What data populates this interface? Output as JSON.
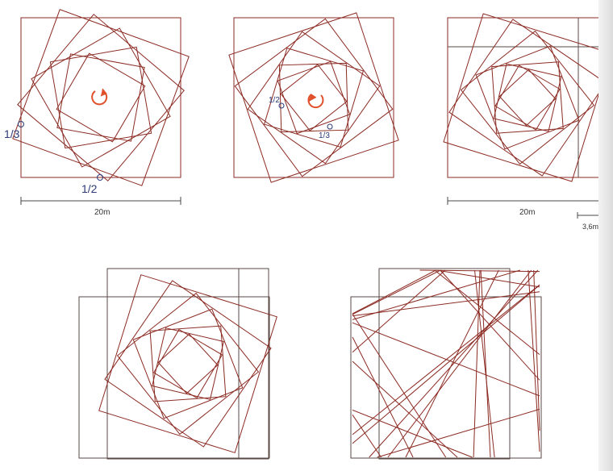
{
  "colors": {
    "construction": "#8b2a22",
    "square_outline": "#5a4a46",
    "dimension": "#4a4a4a",
    "annotation": "#2b3a78",
    "rotation_arrow": "#e0502a",
    "background": "#ffffff"
  },
  "panels": [
    {
      "id": "panel-1",
      "labels": {
        "third": "1/3",
        "half": "1/2"
      },
      "dimension": "20m",
      "rotation_icon": "clockwise-arrow-icon"
    },
    {
      "id": "panel-2",
      "labels": {
        "half": "1/2",
        "third": "1/3"
      },
      "rotation_icon": "counterclockwise-arrow-icon"
    },
    {
      "id": "panel-3",
      "dimension": "20m",
      "secondary_dimension": "3,6m"
    },
    {
      "id": "panel-4"
    },
    {
      "id": "panel-5"
    }
  ]
}
